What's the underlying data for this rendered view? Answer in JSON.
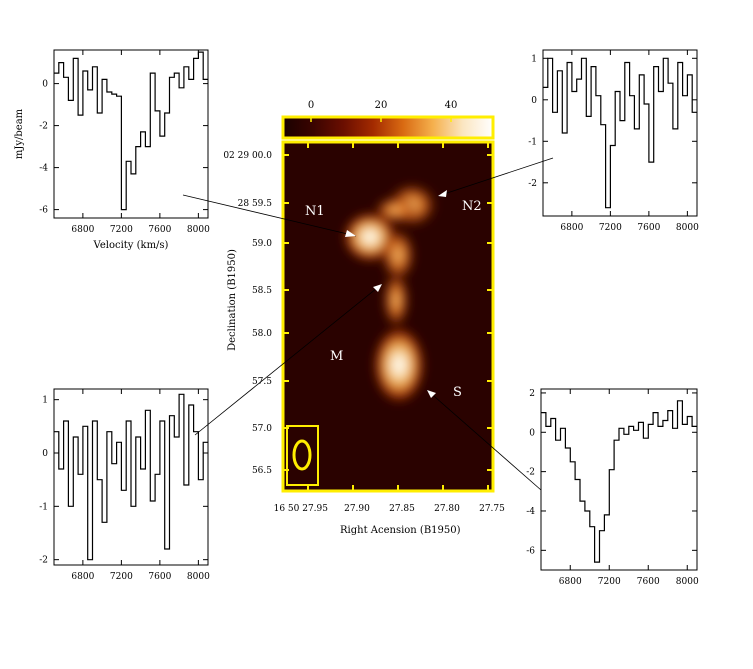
{
  "colorbar": {
    "ticks": [
      0,
      20,
      40
    ],
    "range": [
      -8,
      52
    ],
    "colors": [
      "#1a0100",
      "#3a0400",
      "#6a0e00",
      "#a32a00",
      "#d96a12",
      "#f5b04d",
      "#fbe6c2",
      "#ffffff"
    ]
  },
  "image": {
    "border_color": "#ffee00",
    "background": "#2a0200",
    "ylabel": "Declination (B1950)",
    "xlabel": "Right Acension (B1950)",
    "x_ticks": [
      "16 50 27.95",
      "27.90",
      "27.85",
      "27.80",
      "27.75"
    ],
    "y_ticks": [
      "02 29 00.0",
      "28 59.5",
      "59.0",
      "58.5",
      "58.0",
      "57.5",
      "57.0",
      "56.5"
    ],
    "labels": {
      "n1": "N1",
      "n2": "N2",
      "m": "M",
      "s": "S"
    }
  },
  "chart_data": [
    {
      "type": "line",
      "name": "N1 spectrum",
      "ylabel": "mJy/beam",
      "xlabel": "Velocity (km/s)",
      "xlim": [
        6500,
        8100
      ],
      "ylim": [
        -6.4,
        1.6
      ],
      "x_ticks": [
        6800,
        7200,
        7600,
        8000
      ],
      "y_ticks": [
        0,
        -2,
        -4,
        -6
      ],
      "x": [
        6500,
        6550,
        6600,
        6650,
        6700,
        6750,
        6800,
        6850,
        6900,
        6950,
        7000,
        7050,
        7100,
        7150,
        7200,
        7250,
        7300,
        7350,
        7400,
        7450,
        7500,
        7550,
        7600,
        7650,
        7700,
        7750,
        7800,
        7850,
        7900,
        7950,
        8000,
        8050
      ],
      "values": [
        0.5,
        1.0,
        0.3,
        -0.8,
        1.2,
        -1.5,
        0.6,
        -0.3,
        0.8,
        -1.4,
        0.2,
        -0.4,
        -0.5,
        -0.6,
        -6.0,
        -3.7,
        -4.3,
        -3.0,
        -2.3,
        -3.0,
        0.5,
        -1.3,
        -2.5,
        -1.4,
        0.3,
        0.5,
        -0.2,
        0.8,
        0.2,
        1.2,
        1.5,
        0.2
      ]
    },
    {
      "type": "line",
      "name": "N2 spectrum",
      "xlim": [
        6500,
        8100
      ],
      "ylim": [
        -2.8,
        1.2
      ],
      "x_ticks": [
        6800,
        7200,
        7600,
        8000
      ],
      "y_ticks": [
        1,
        0,
        -1,
        -2
      ],
      "x": [
        6500,
        6550,
        6600,
        6650,
        6700,
        6750,
        6800,
        6850,
        6900,
        6950,
        7000,
        7050,
        7100,
        7150,
        7200,
        7250,
        7300,
        7350,
        7400,
        7450,
        7500,
        7550,
        7600,
        7650,
        7700,
        7750,
        7800,
        7850,
        7900,
        7950,
        8000,
        8050
      ],
      "values": [
        0.3,
        1.0,
        -0.3,
        0.7,
        -0.8,
        0.9,
        0.2,
        0.5,
        1.0,
        -0.4,
        0.8,
        0.1,
        -0.6,
        -2.6,
        -1.1,
        0.2,
        -0.5,
        0.9,
        0.1,
        -0.7,
        0.6,
        -0.1,
        -1.5,
        0.8,
        0.2,
        1.0,
        0.4,
        -0.7,
        0.9,
        0.1,
        0.6,
        -0.3
      ]
    },
    {
      "type": "line",
      "name": "M spectrum",
      "xlim": [
        6500,
        8100
      ],
      "ylim": [
        -2.1,
        1.2
      ],
      "x_ticks": [
        6800,
        7200,
        7600,
        8000
      ],
      "y_ticks": [
        1,
        0,
        -1,
        -2
      ],
      "x": [
        6500,
        6550,
        6600,
        6650,
        6700,
        6750,
        6800,
        6850,
        6900,
        6950,
        7000,
        7050,
        7100,
        7150,
        7200,
        7250,
        7300,
        7350,
        7400,
        7450,
        7500,
        7550,
        7600,
        7650,
        7700,
        7750,
        7800,
        7850,
        7900,
        7950,
        8000,
        8050
      ],
      "values": [
        0.4,
        -0.3,
        0.6,
        -1.0,
        0.3,
        -0.4,
        0.5,
        -2.0,
        0.6,
        -0.5,
        -1.3,
        0.4,
        -0.2,
        0.2,
        -0.7,
        0.6,
        -1.0,
        0.3,
        -0.3,
        0.8,
        -0.9,
        -0.4,
        0.6,
        -1.8,
        0.7,
        0.3,
        1.1,
        -0.6,
        0.9,
        0.4,
        -0.5,
        0.2
      ]
    },
    {
      "type": "line",
      "name": "S spectrum",
      "xlim": [
        6500,
        8100
      ],
      "ylim": [
        -7.0,
        2.2
      ],
      "x_ticks": [
        6800,
        7200,
        7600,
        8000
      ],
      "y_ticks": [
        2,
        0,
        -2,
        -4,
        -6
      ],
      "x": [
        6500,
        6550,
        6600,
        6650,
        6700,
        6750,
        6800,
        6850,
        6900,
        6950,
        7000,
        7050,
        7100,
        7150,
        7200,
        7250,
        7300,
        7350,
        7400,
        7450,
        7500,
        7550,
        7600,
        7650,
        7700,
        7750,
        7800,
        7850,
        7900,
        7950,
        8000,
        8050
      ],
      "values": [
        1.0,
        0.3,
        0.7,
        -0.4,
        0.2,
        -0.8,
        -1.5,
        -2.4,
        -3.5,
        -4.0,
        -4.8,
        -6.6,
        -5.0,
        -4.2,
        -1.9,
        -0.4,
        0.2,
        -0.1,
        0.3,
        0.1,
        0.5,
        -0.3,
        0.4,
        1.0,
        0.3,
        0.6,
        1.1,
        0.2,
        1.6,
        0.4,
        0.8,
        0.3
      ]
    }
  ]
}
